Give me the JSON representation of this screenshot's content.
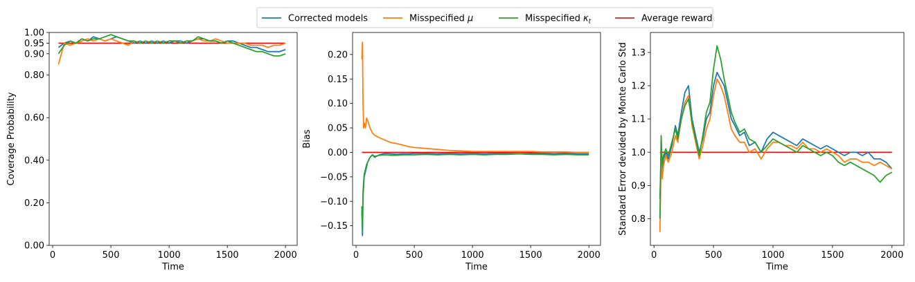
{
  "legend": {
    "entries": [
      {
        "label": "Corrected models",
        "color": "#1f77b4"
      },
      {
        "label": "Misspecified μ",
        "color": "#ff7f0e",
        "sym": "μ"
      },
      {
        "label": "Misspecified κt",
        "color": "#2ca02c",
        "sym": "κ",
        "sub": "t"
      },
      {
        "label": "Average reward",
        "color": "#d62728"
      }
    ]
  },
  "chart_data": [
    {
      "type": "line",
      "xlabel": "Time",
      "ylabel": "Coverage Probability",
      "xlim": [
        -30,
        2100
      ],
      "ylim": [
        0,
        1.0
      ],
      "xticks": [
        0,
        500,
        1000,
        1500,
        2000
      ],
      "xtick_labels": [
        "0",
        "500",
        "1000",
        "1500",
        "2000"
      ],
      "yticks": [
        0.0,
        0.2,
        0.4,
        0.6,
        0.8,
        0.9,
        0.95,
        1.0
      ],
      "ytick_labels": [
        "0.00",
        "0.20",
        "0.40",
        "0.60",
        "0.80",
        "0.90",
        "0.95",
        "1.00"
      ],
      "reference": {
        "name": "Average reward",
        "y": 0.95,
        "x": [
          50,
          2000
        ]
      },
      "x": [
        50,
        100,
        150,
        200,
        250,
        300,
        350,
        400,
        450,
        500,
        550,
        600,
        650,
        700,
        750,
        800,
        850,
        900,
        950,
        1000,
        1050,
        1100,
        1150,
        1200,
        1250,
        1300,
        1350,
        1400,
        1450,
        1500,
        1550,
        1600,
        1650,
        1700,
        1750,
        1800,
        1850,
        1900,
        1950,
        2000
      ],
      "series": [
        {
          "name": "Corrected models",
          "values": [
            0.93,
            0.95,
            0.96,
            0.95,
            0.97,
            0.96,
            0.98,
            0.97,
            0.96,
            0.97,
            0.98,
            0.97,
            0.96,
            0.95,
            0.96,
            0.95,
            0.96,
            0.95,
            0.96,
            0.95,
            0.96,
            0.96,
            0.95,
            0.96,
            0.97,
            0.97,
            0.96,
            0.96,
            0.95,
            0.96,
            0.96,
            0.95,
            0.94,
            0.93,
            0.93,
            0.92,
            0.91,
            0.91,
            0.91,
            0.92
          ]
        },
        {
          "name": "Misspecified μ",
          "values": [
            0.85,
            0.95,
            0.94,
            0.95,
            0.96,
            0.97,
            0.96,
            0.97,
            0.96,
            0.97,
            0.96,
            0.95,
            0.94,
            0.96,
            0.95,
            0.96,
            0.95,
            0.96,
            0.95,
            0.96,
            0.96,
            0.95,
            0.96,
            0.96,
            0.97,
            0.96,
            0.96,
            0.97,
            0.96,
            0.95,
            0.95,
            0.95,
            0.95,
            0.94,
            0.94,
            0.94,
            0.93,
            0.94,
            0.94,
            0.95
          ]
        },
        {
          "name": "Misspecified κt",
          "values": [
            0.9,
            0.94,
            0.96,
            0.95,
            0.97,
            0.96,
            0.97,
            0.97,
            0.98,
            0.99,
            0.98,
            0.97,
            0.96,
            0.96,
            0.95,
            0.96,
            0.95,
            0.96,
            0.95,
            0.96,
            0.96,
            0.95,
            0.96,
            0.96,
            0.98,
            0.97,
            0.96,
            0.96,
            0.95,
            0.96,
            0.95,
            0.94,
            0.93,
            0.92,
            0.91,
            0.91,
            0.9,
            0.89,
            0.89,
            0.9
          ]
        }
      ]
    },
    {
      "type": "line",
      "xlabel": "Time",
      "ylabel": "Bias",
      "xlim": [
        -30,
        2100
      ],
      "ylim": [
        -0.19,
        0.245
      ],
      "xticks": [
        0,
        500,
        1000,
        1500,
        2000
      ],
      "xtick_labels": [
        "0",
        "500",
        "1000",
        "1500",
        "2000"
      ],
      "yticks": [
        -0.15,
        -0.1,
        -0.05,
        0.0,
        0.05,
        0.1,
        0.15,
        0.2
      ],
      "ytick_labels": [
        "−0.15",
        "−0.10",
        "−0.05",
        "0.00",
        "0.05",
        "0.10",
        "0.15",
        "0.20"
      ],
      "reference": {
        "name": "Average reward",
        "y": 0.0,
        "x": [
          50,
          2000
        ]
      },
      "x": [
        50,
        55,
        60,
        65,
        70,
        80,
        90,
        100,
        120,
        140,
        160,
        200,
        250,
        300,
        350,
        400,
        450,
        500,
        600,
        700,
        800,
        900,
        1000,
        1100,
        1200,
        1300,
        1400,
        1500,
        1600,
        1700,
        1800,
        1900,
        2000
      ],
      "series": [
        {
          "name": "Corrected models",
          "values": [
            -0.12,
            -0.17,
            -0.09,
            -0.07,
            -0.05,
            -0.04,
            -0.03,
            -0.02,
            -0.01,
            -0.005,
            -0.01,
            -0.005,
            -0.002,
            -0.003,
            -0.004,
            -0.003,
            -0.003,
            -0.002,
            -0.002,
            -0.003,
            -0.002,
            -0.003,
            -0.002,
            -0.003,
            -0.002,
            -0.002,
            -0.003,
            -0.002,
            -0.002,
            -0.003,
            -0.002,
            -0.003,
            -0.003
          ]
        },
        {
          "name": "Misspecified μ",
          "values": [
            0.19,
            0.225,
            0.1,
            0.05,
            0.06,
            0.05,
            0.07,
            0.065,
            0.05,
            0.04,
            0.035,
            0.03,
            0.025,
            0.02,
            0.018,
            0.015,
            0.012,
            0.01,
            0.008,
            0.006,
            0.004,
            0.003,
            0.002,
            0.002,
            0.002,
            0.002,
            0.002,
            0.002,
            0.001,
            0.001,
            0.001,
            0.0,
            0.0
          ]
        },
        {
          "name": "Misspecified κt",
          "values": [
            -0.11,
            -0.16,
            -0.08,
            -0.06,
            -0.045,
            -0.035,
            -0.025,
            -0.02,
            -0.01,
            -0.005,
            -0.008,
            -0.006,
            -0.005,
            -0.006,
            -0.006,
            -0.005,
            -0.005,
            -0.005,
            -0.004,
            -0.005,
            -0.004,
            -0.005,
            -0.004,
            -0.005,
            -0.004,
            -0.004,
            -0.003,
            -0.004,
            -0.004,
            -0.005,
            -0.004,
            -0.005,
            -0.005
          ]
        }
      ]
    },
    {
      "type": "line",
      "xlabel": "Time",
      "ylabel": "Standard Error devided by Monte Carlo Std",
      "xlim": [
        -30,
        2100
      ],
      "ylim": [
        0.72,
        1.36
      ],
      "xticks": [
        0,
        500,
        1000,
        1500,
        2000
      ],
      "xtick_labels": [
        "0",
        "500",
        "1000",
        "1500",
        "2000"
      ],
      "yticks": [
        0.8,
        0.9,
        1.0,
        1.1,
        1.2,
        1.3
      ],
      "ytick_labels": [
        "0.8",
        "0.9",
        "1.0",
        "1.1",
        "1.2",
        "1.3"
      ],
      "reference": {
        "name": "Average reward",
        "y": 1.0,
        "x": [
          50,
          2000
        ]
      },
      "x": [
        50,
        60,
        70,
        80,
        100,
        120,
        150,
        180,
        200,
        230,
        260,
        290,
        320,
        350,
        380,
        410,
        440,
        470,
        500,
        530,
        560,
        590,
        620,
        650,
        680,
        720,
        760,
        800,
        850,
        900,
        950,
        1000,
        1050,
        1100,
        1150,
        1200,
        1250,
        1300,
        1350,
        1400,
        1450,
        1500,
        1550,
        1600,
        1650,
        1700,
        1750,
        1800,
        1850,
        1900,
        1950,
        2000
      ],
      "series": [
        {
          "name": "Corrected models",
          "values": [
            0.86,
            1.0,
            0.95,
            0.98,
            1.0,
            0.98,
            1.02,
            1.08,
            1.05,
            1.12,
            1.18,
            1.2,
            1.1,
            1.05,
            1.0,
            1.04,
            1.1,
            1.12,
            1.2,
            1.24,
            1.22,
            1.2,
            1.15,
            1.1,
            1.08,
            1.05,
            1.06,
            1.02,
            1.03,
            1.0,
            1.04,
            1.06,
            1.05,
            1.04,
            1.03,
            1.02,
            1.04,
            1.03,
            1.02,
            1.01,
            1.02,
            1.01,
            1.0,
            0.99,
            1.0,
            1.0,
            0.99,
            1.0,
            0.98,
            0.98,
            0.97,
            0.95
          ]
        },
        {
          "name": "Misspecified μ",
          "values": [
            0.76,
            0.98,
            0.92,
            0.96,
            0.99,
            0.97,
            1.0,
            1.05,
            1.03,
            1.1,
            1.15,
            1.17,
            1.08,
            1.03,
            0.98,
            1.02,
            1.07,
            1.1,
            1.17,
            1.22,
            1.2,
            1.17,
            1.12,
            1.07,
            1.05,
            1.03,
            1.03,
            1.0,
            1.01,
            0.98,
            1.01,
            1.03,
            1.03,
            1.02,
            1.02,
            1.01,
            1.03,
            1.01,
            1.01,
            1.0,
            1.01,
            1.0,
            0.99,
            0.97,
            0.98,
            0.98,
            0.97,
            0.97,
            0.96,
            0.97,
            0.96,
            0.95
          ]
        },
        {
          "name": "Misspecified κt",
          "values": [
            0.8,
            1.05,
            0.96,
            0.99,
            1.01,
            0.99,
            1.03,
            1.07,
            1.04,
            1.1,
            1.14,
            1.16,
            1.09,
            1.04,
            0.99,
            1.05,
            1.12,
            1.15,
            1.25,
            1.32,
            1.28,
            1.22,
            1.17,
            1.12,
            1.09,
            1.06,
            1.07,
            1.04,
            1.03,
            1.0,
            1.02,
            1.04,
            1.03,
            1.02,
            1.01,
            1.0,
            1.02,
            1.01,
            1.0,
            0.99,
            1.0,
            0.99,
            0.97,
            0.96,
            0.97,
            0.96,
            0.95,
            0.94,
            0.93,
            0.91,
            0.93,
            0.94
          ]
        }
      ]
    }
  ]
}
